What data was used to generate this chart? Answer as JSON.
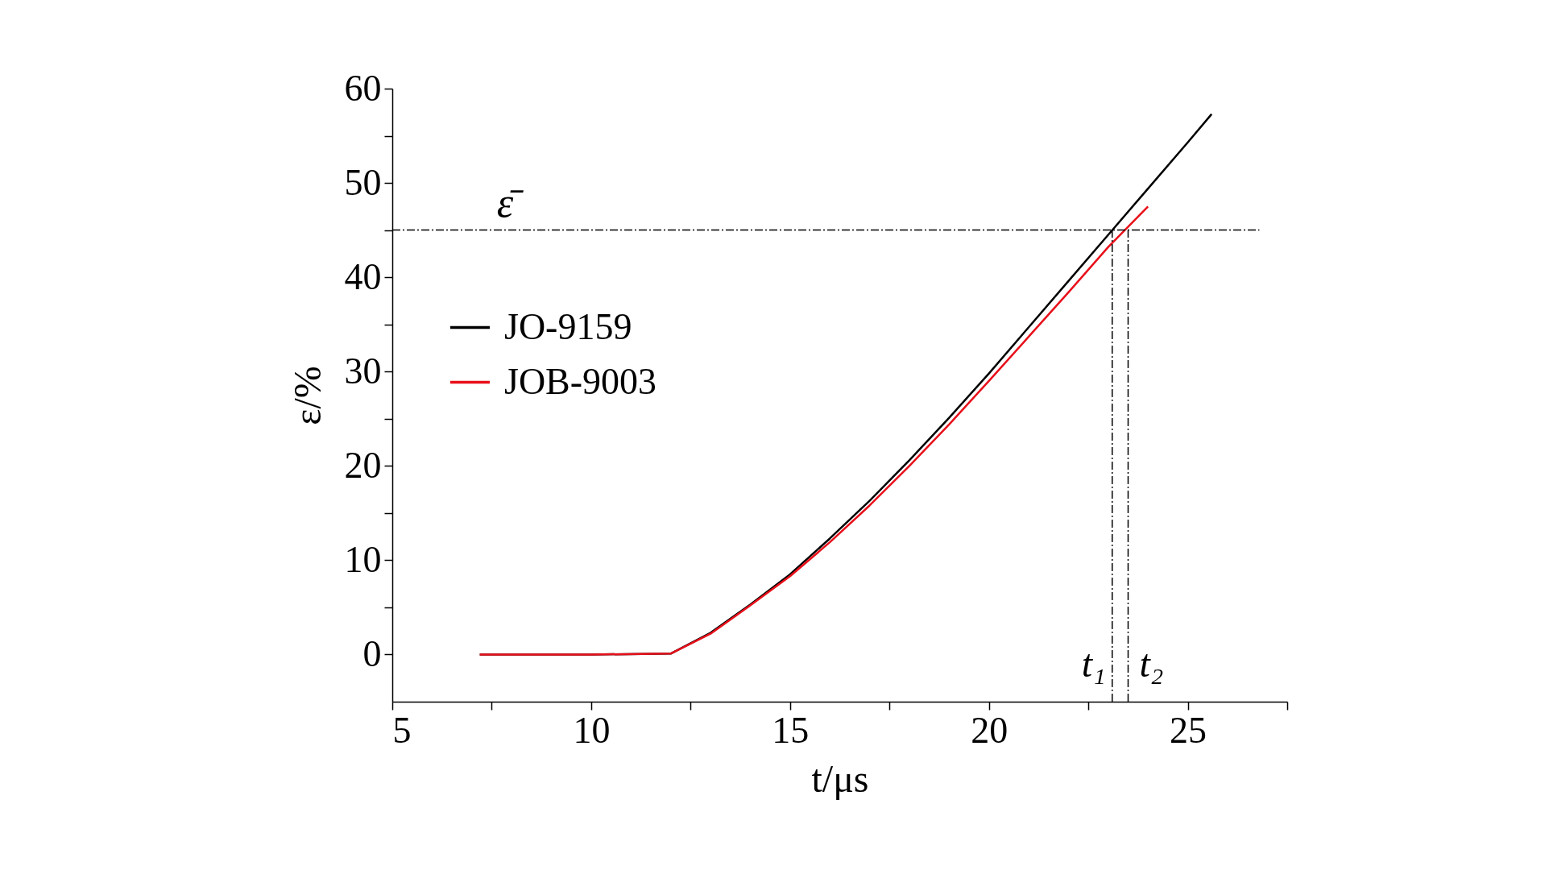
{
  "chart_data": {
    "type": "line",
    "xlabel": "t/μs",
    "ylabel": "ε/%",
    "xlim": [
      5,
      27.5
    ],
    "xticks": [
      5,
      {
        "value": 7.5,
        "label": null
      },
      10,
      {
        "value": 12.5,
        "label": null
      },
      15,
      {
        "value": 17.5,
        "label": null
      },
      20,
      {
        "value": 22.5,
        "label": null
      },
      25,
      {
        "value": 27.5,
        "label": null
      }
    ],
    "ylim": [
      -5,
      60
    ],
    "yticks": [
      0,
      {
        "value": 5,
        "label": null
      },
      10,
      {
        "value": 15,
        "label": null
      },
      20,
      {
        "value": 25,
        "label": null
      },
      30,
      {
        "value": 35,
        "label": null
      },
      40,
      {
        "value": 45,
        "label": null
      },
      50,
      {
        "value": 55,
        "label": null
      },
      60
    ],
    "series": [
      {
        "name": "JO-9159",
        "color": "#000000",
        "x": [
          7.2,
          10,
          12,
          13,
          14,
          15,
          16,
          17,
          18,
          19,
          20,
          21,
          22,
          23,
          24,
          25,
          25.6
        ],
        "values": [
          0,
          0,
          0.1,
          2.3,
          5.3,
          8.5,
          12.3,
          16.3,
          20.6,
          25.1,
          29.8,
          34.7,
          39.6,
          44.5,
          49.4,
          54.3,
          57.3
        ]
      },
      {
        "name": "JOB-9003",
        "color": "#e8101a",
        "x": [
          7.2,
          10,
          12,
          13,
          14,
          15,
          16,
          17,
          18,
          19,
          20,
          21,
          22,
          23,
          24
        ],
        "values": [
          0,
          0,
          0.1,
          2.2,
          5.2,
          8.3,
          11.9,
          15.8,
          20,
          24.4,
          29,
          33.7,
          38.4,
          43.2,
          47.5
        ]
      }
    ],
    "ref_lines": [
      {
        "axis": "y",
        "value": 45,
        "label": "ε̄",
        "color": "#000000",
        "line_style": "dashed"
      },
      {
        "axis": "x",
        "value": 23.1,
        "label": "t₁",
        "color": "#000000",
        "line_style": "dashed"
      },
      {
        "axis": "x",
        "value": 23.5,
        "label": "t₂",
        "color": "#000000",
        "line_style": "dashed"
      }
    ],
    "legend": "top left",
    "grid": false,
    "line_style": "solid",
    "marker": "none"
  }
}
